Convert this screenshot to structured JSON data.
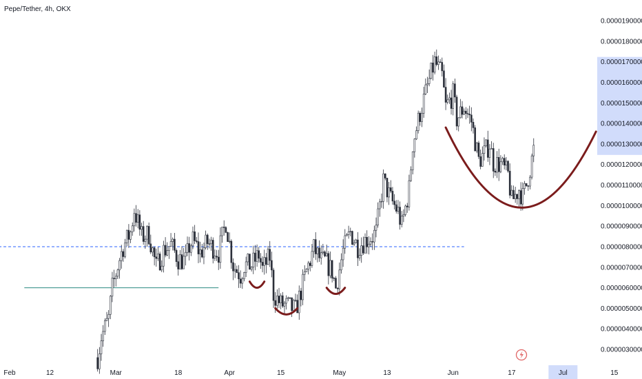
{
  "header": {
    "title": "Pepe/Tether, 4h, OKX"
  },
  "colors": {
    "up": "#26a69a",
    "down": "#ef5350",
    "wick": "#2a2e39",
    "curve": "#7b1c1c",
    "support": "#2a8a80",
    "resistance": "#2962ff",
    "highlight": "#d1dcfb",
    "axis_text": "#131722"
  },
  "chart_data": {
    "type": "candlestick",
    "title": "Pepe/Tether, 4h, OKX",
    "ylim": [
      2.5e-06,
      1.97e-05
    ],
    "y_ticks": [
      "0.0000030000",
      "0.0000040000",
      "0.0000050000",
      "0.0000060000",
      "0.0000070000",
      "0.0000080000",
      "0.0000090000",
      "0.0000100000",
      "0.0000110000",
      "0.0000120000",
      "0.0000130000",
      "0.0000140000",
      "0.0000150000",
      "0.0000160000",
      "0.0000170000",
      "0.0000180000",
      "0.0000190000"
    ],
    "y_tick_values": [
      3e-06,
      4e-06,
      5e-06,
      6e-06,
      7e-06,
      8e-06,
      9e-06,
      1e-05,
      1.1e-05,
      1.2e-05,
      1.3e-05,
      1.4e-05,
      1.5e-05,
      1.6e-05,
      1.7e-05,
      1.8e-05,
      1.9e-05
    ],
    "y_highlight_range": [
      1.27e-05,
      1.7e-05
    ],
    "x_ticks": [
      "Feb",
      "12",
      "Mar",
      "18",
      "Apr",
      "15",
      "May",
      "13",
      "Jun",
      "17",
      "Jul",
      "15"
    ],
    "x_tick_days": [
      0,
      11,
      29,
      46,
      60,
      74,
      90,
      103,
      121,
      137,
      151,
      165
    ],
    "x_highlight_label": "Jul",
    "x_range_days": [
      0,
      173
    ],
    "price_path": [
      [
        24,
        2.6e-06
      ],
      [
        25,
        3.6e-06
      ],
      [
        27,
        4.5e-06
      ],
      [
        28,
        6e-06
      ],
      [
        30,
        7.4e-06
      ],
      [
        31,
        8e-06
      ],
      [
        33,
        8.7e-06
      ],
      [
        34,
        9.8e-06
      ],
      [
        36,
        8.5e-06
      ],
      [
        38,
        8.6e-06
      ],
      [
        40,
        7e-06
      ],
      [
        42,
        7.8e-06
      ],
      [
        44,
        8.1e-06
      ],
      [
        46,
        7.4e-06
      ],
      [
        48,
        7.3e-06
      ],
      [
        49,
        8e-06
      ],
      [
        50,
        8.3e-06
      ],
      [
        52,
        7.7e-06
      ],
      [
        54,
        8.2e-06
      ],
      [
        57,
        7.7e-06
      ],
      [
        59,
        9.2e-06
      ],
      [
        61,
        7.1e-06
      ],
      [
        63,
        6.6e-06
      ],
      [
        64,
        7.1e-06
      ],
      [
        66,
        7.1e-06
      ],
      [
        68,
        7.6e-06
      ],
      [
        69,
        6.9e-06
      ],
      [
        71,
        7.5e-06
      ],
      [
        72,
        5.7e-06
      ],
      [
        74,
        5.2e-06
      ],
      [
        76,
        5.1e-06
      ],
      [
        78,
        4.9e-06
      ],
      [
        79,
        5.5e-06
      ],
      [
        81,
        6.8e-06
      ],
      [
        83,
        7.9e-06
      ],
      [
        85,
        7.3e-06
      ],
      [
        86,
        7.3e-06
      ],
      [
        88,
        6.8e-06
      ],
      [
        89,
        6e-06
      ],
      [
        91,
        7.8e-06
      ],
      [
        93,
        8.7e-06
      ],
      [
        95,
        8e-06
      ],
      [
        97,
        8.3e-06
      ],
      [
        99,
        8.5e-06
      ],
      [
        100,
        8.7e-06
      ],
      [
        102,
        1.12e-05
      ],
      [
        104,
        1.03e-05
      ],
      [
        106,
        9.7e-06
      ],
      [
        107,
        9e-06
      ],
      [
        109,
        1.08e-05
      ],
      [
        110,
        1.3e-05
      ],
      [
        112,
        1.45e-05
      ],
      [
        114,
        1.58e-05
      ],
      [
        116,
        1.7e-05
      ],
      [
        118,
        1.63e-05
      ],
      [
        119,
        1.48e-05
      ],
      [
        121,
        1.54e-05
      ],
      [
        122,
        1.42e-05
      ],
      [
        124,
        1.48e-05
      ],
      [
        126,
        1.41e-05
      ],
      [
        128,
        1.22e-05
      ],
      [
        129,
        1.24e-05
      ],
      [
        131,
        1.3e-05
      ],
      [
        132,
        1.21e-05
      ],
      [
        134,
        1.2e-05
      ],
      [
        136,
        1.15e-05
      ],
      [
        137,
        1.02e-05
      ],
      [
        139,
        1.08e-05
      ],
      [
        140,
        1.04e-05
      ],
      [
        141,
        1.1e-05
      ],
      [
        142,
        1.18e-05
      ],
      [
        143,
        1.27e-05
      ]
    ],
    "annotations": [
      {
        "type": "hline",
        "y": 6e-06,
        "x_start": 4,
        "x_end": 57,
        "style": "solid"
      },
      {
        "type": "hline",
        "y": 8e-06,
        "x_start": -3,
        "x_end": 124,
        "style": "dashed"
      },
      {
        "type": "arc",
        "x_start": 65.5,
        "x_end": 69.5,
        "y_end": 6.3e-06,
        "y_bottom": 6e-06
      },
      {
        "type": "arc",
        "x_start": 72.5,
        "x_end": 78.5,
        "y_end": 5e-06,
        "y_bottom": 4.7e-06
      },
      {
        "type": "arc",
        "x_start": 86.5,
        "x_end": 91.5,
        "y_end": 6e-06,
        "y_bottom": 5.7e-06
      },
      {
        "type": "arc",
        "x_start": 119,
        "x_end": 160,
        "y_start": 1.38e-05,
        "y_end": 1.36e-05,
        "y_bottom": 9.9e-06
      }
    ],
    "watermark_icon": "lightning-badge-icon"
  }
}
